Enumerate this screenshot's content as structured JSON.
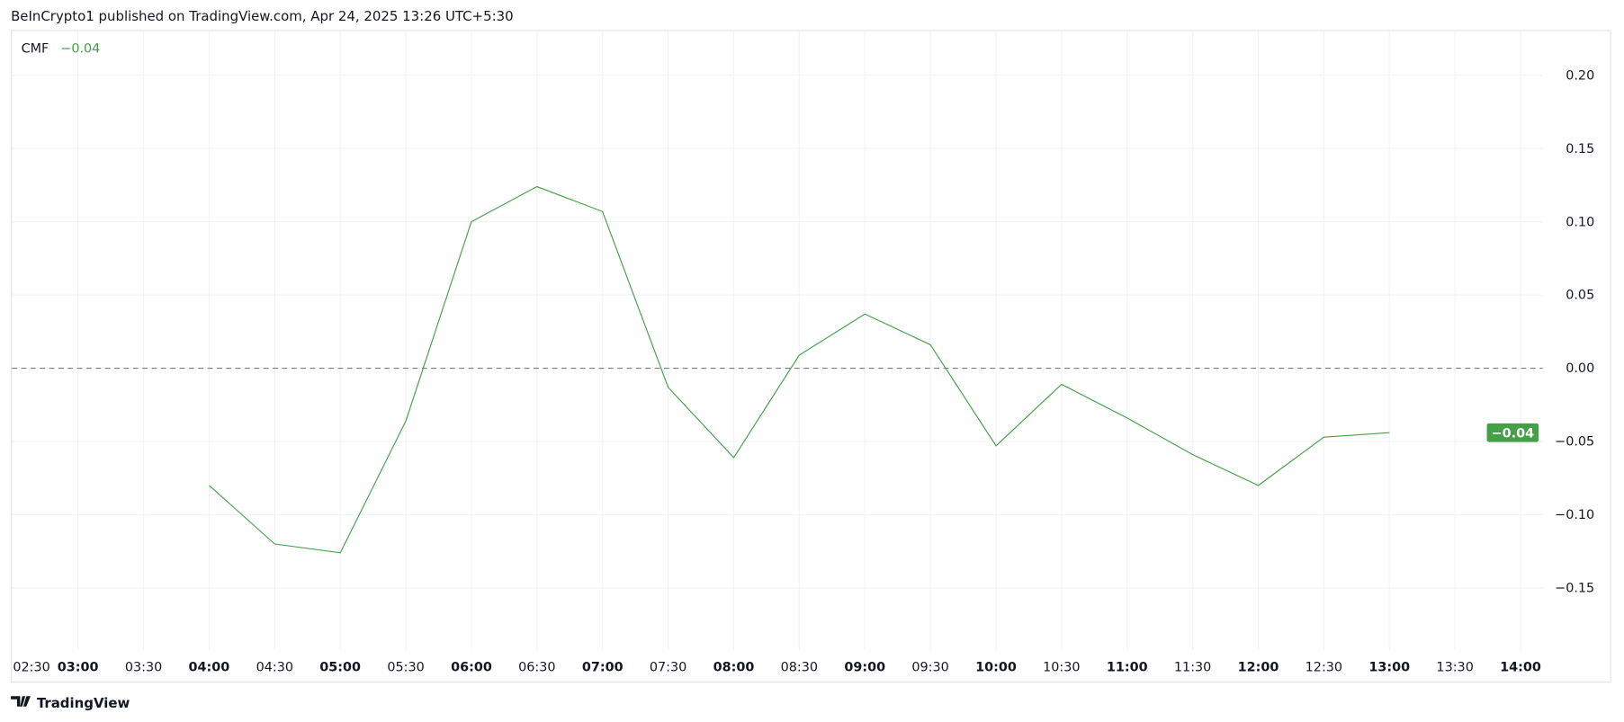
{
  "header": {
    "published": "BeInCrypto1 published on TradingView.com, Apr 24, 2025 13:26 UTC+5:30"
  },
  "legend": {
    "indicator": "CMF",
    "value": "−0.04"
  },
  "footer": {
    "brand": "TradingView"
  },
  "colors": {
    "line": "#43a047",
    "grid": "#f0f3fa",
    "zero_line": "#787b86",
    "text": "#131722"
  },
  "chart_data": {
    "type": "line",
    "title": "",
    "series": [
      {
        "name": "CMF",
        "x": [
          "04:00",
          "04:30",
          "05:00",
          "05:30",
          "06:00",
          "06:30",
          "07:00",
          "07:30",
          "08:00",
          "08:30",
          "09:00",
          "09:30",
          "10:00",
          "10:30",
          "11:00",
          "11:30",
          "12:00",
          "12:30",
          "13:00"
        ],
        "values": [
          -0.08,
          -0.12,
          -0.126,
          -0.036,
          0.1,
          0.124,
          0.107,
          -0.013,
          -0.061,
          0.009,
          0.037,
          0.016,
          -0.053,
          -0.011,
          -0.034,
          -0.059,
          -0.08,
          -0.047,
          -0.044
        ]
      }
    ],
    "last_value_label": "−0.04",
    "x_ticks": [
      {
        "label": "02:30",
        "bold": false
      },
      {
        "label": "03:00",
        "bold": true
      },
      {
        "label": "03:30",
        "bold": false
      },
      {
        "label": "04:00",
        "bold": true
      },
      {
        "label": "04:30",
        "bold": false
      },
      {
        "label": "05:00",
        "bold": true
      },
      {
        "label": "05:30",
        "bold": false
      },
      {
        "label": "06:00",
        "bold": true
      },
      {
        "label": "06:30",
        "bold": false
      },
      {
        "label": "07:00",
        "bold": true
      },
      {
        "label": "07:30",
        "bold": false
      },
      {
        "label": "08:00",
        "bold": true
      },
      {
        "label": "08:30",
        "bold": false
      },
      {
        "label": "09:00",
        "bold": true
      },
      {
        "label": "09:30",
        "bold": false
      },
      {
        "label": "10:00",
        "bold": true
      },
      {
        "label": "10:30",
        "bold": false
      },
      {
        "label": "11:00",
        "bold": true
      },
      {
        "label": "11:30",
        "bold": false
      },
      {
        "label": "12:00",
        "bold": true
      },
      {
        "label": "12:30",
        "bold": false
      },
      {
        "label": "13:00",
        "bold": true
      },
      {
        "label": "13:30",
        "bold": false
      },
      {
        "label": "14:00",
        "bold": true
      }
    ],
    "y_ticks": [
      {
        "value": 0.2,
        "label": "0.20"
      },
      {
        "value": 0.15,
        "label": "0.15"
      },
      {
        "value": 0.1,
        "label": "0.10"
      },
      {
        "value": 0.05,
        "label": "0.05"
      },
      {
        "value": 0.0,
        "label": "0.00"
      },
      {
        "value": -0.05,
        "label": "−0.05"
      },
      {
        "value": -0.1,
        "label": "−0.10"
      },
      {
        "value": -0.15,
        "label": "−0.15"
      }
    ],
    "ylim": [
      -0.19,
      0.23
    ],
    "zero_line": "dashed",
    "grid": true
  }
}
